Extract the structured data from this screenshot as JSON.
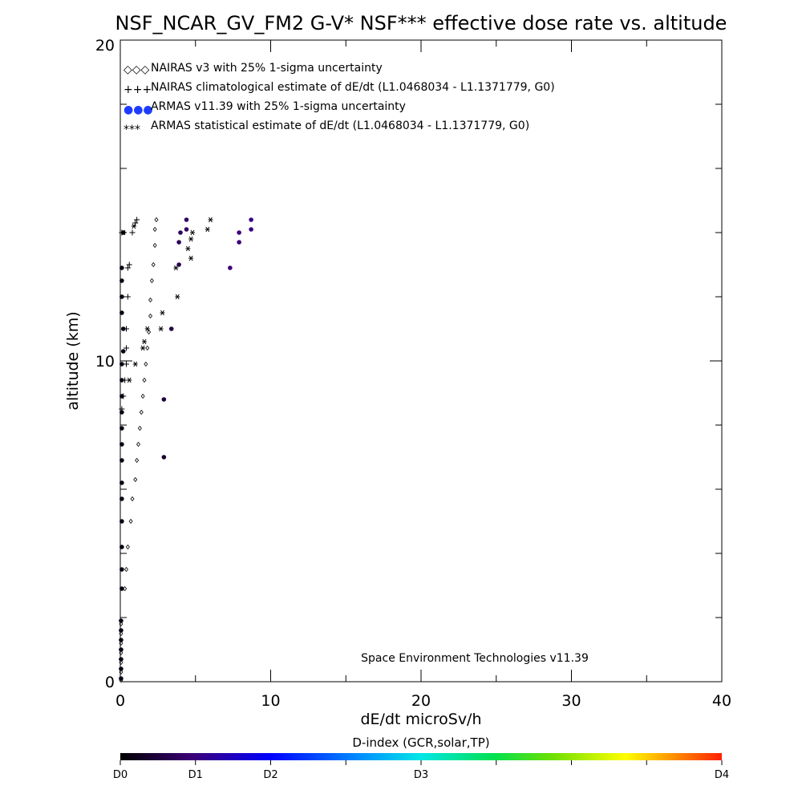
{
  "chart_data": {
    "type": "scatter",
    "title": "NSF_NCAR_GV_FM2 G-V* NSF*** effective dose rate vs. altitude",
    "xlabel": "dE/dt microSv/h",
    "ylabel": "altitude (km)",
    "xlim": [
      0,
      40
    ],
    "ylim": [
      0,
      20
    ],
    "x_ticks": [
      "0",
      "10",
      "20",
      "30",
      "40"
    ],
    "y_ticks": [
      "0",
      "10",
      "20"
    ],
    "legend_position": "top-left",
    "credit": "Space Environment Technologies v11.39",
    "legend": [
      {
        "symbol": "◇◇◇",
        "label": "NAIRAS v3 with 25% 1-sigma uncertainty"
      },
      {
        "symbol": "+++",
        "label": "NAIRAS climatological estimate of dE/dt (L1.0468034 - L1.1371779, G0)"
      },
      {
        "symbol": "●●●",
        "label": "ARMAS v11.39 with 25% 1-sigma uncertainty"
      },
      {
        "symbol": "***",
        "label": "ARMAS statistical estimate of dE/dt (L1.0468034 - L1.1371779, G0)"
      }
    ],
    "colorbar": {
      "title": "D-index (GCR,solar,TP)",
      "labels": [
        "D0",
        "D1",
        "D2",
        "D3",
        "D4"
      ],
      "label_positions": [
        0,
        0.125,
        0.25,
        0.5,
        1.0
      ]
    },
    "series": [
      {
        "name": "NAIRAS v3 with 25% 1-sigma uncertainty",
        "marker": "diamond",
        "color": "#000000",
        "points": [
          [
            0.05,
            0.05
          ],
          [
            0.05,
            0.3
          ],
          [
            0.05,
            0.6
          ],
          [
            0.05,
            0.9
          ],
          [
            0.05,
            1.2
          ],
          [
            0.05,
            1.5
          ],
          [
            0.05,
            1.8
          ],
          [
            0.3,
            2.9
          ],
          [
            0.4,
            3.5
          ],
          [
            0.5,
            4.2
          ],
          [
            0.7,
            5.0
          ],
          [
            0.8,
            5.7
          ],
          [
            1.0,
            6.3
          ],
          [
            1.1,
            6.9
          ],
          [
            1.2,
            7.4
          ],
          [
            1.3,
            7.9
          ],
          [
            1.4,
            8.4
          ],
          [
            1.5,
            8.9
          ],
          [
            1.6,
            9.4
          ],
          [
            1.7,
            9.9
          ],
          [
            1.8,
            10.4
          ],
          [
            1.9,
            10.9
          ],
          [
            2.0,
            11.4
          ],
          [
            2.0,
            11.9
          ],
          [
            2.1,
            12.5
          ],
          [
            2.2,
            13.0
          ],
          [
            2.3,
            13.6
          ],
          [
            2.3,
            14.1
          ],
          [
            2.4,
            14.4
          ]
        ]
      },
      {
        "name": "NAIRAS climatological estimate of dE/dt (L1.0468034 - L1.1371779, G0)",
        "marker": "plus",
        "color": "#000000",
        "points": [
          [
            0.1,
            8.5
          ],
          [
            0.2,
            8.9
          ],
          [
            0.3,
            9.4
          ],
          [
            0.4,
            9.9
          ],
          [
            0.4,
            10.4
          ],
          [
            0.4,
            11.0
          ],
          [
            0.5,
            12.0
          ],
          [
            0.5,
            12.9
          ],
          [
            0.6,
            13.0
          ],
          [
            0.8,
            14.0
          ],
          [
            1.0,
            14.3
          ],
          [
            1.1,
            14.4
          ],
          [
            0.1,
            14.0
          ]
        ]
      },
      {
        "name": "ARMAS v11.39 with 25% 1-sigma uncertainty",
        "marker": "dot",
        "points": [
          [
            0.05,
            0.1
          ],
          [
            0.05,
            0.4
          ],
          [
            0.05,
            0.7
          ],
          [
            0.05,
            1.0
          ],
          [
            0.05,
            1.3
          ],
          [
            0.05,
            1.6
          ],
          [
            0.05,
            1.9
          ],
          [
            0.1,
            2.9
          ],
          [
            0.1,
            3.5
          ],
          [
            0.1,
            4.2
          ],
          [
            0.1,
            5.0
          ],
          [
            0.1,
            5.7
          ],
          [
            0.1,
            6.2
          ],
          [
            0.1,
            6.9
          ],
          [
            0.1,
            7.4
          ],
          [
            0.1,
            7.9
          ],
          [
            0.1,
            8.4
          ],
          [
            0.1,
            8.9
          ],
          [
            0.1,
            9.4
          ],
          [
            0.1,
            9.9
          ],
          [
            0.2,
            10.3
          ],
          [
            0.2,
            11.0
          ],
          [
            0.1,
            11.5
          ],
          [
            0.1,
            12.0
          ],
          [
            0.1,
            12.5
          ],
          [
            0.1,
            12.9
          ],
          [
            0.2,
            14.0
          ],
          [
            2.9,
            7.0
          ],
          [
            2.9,
            8.8
          ],
          [
            3.4,
            11.0
          ],
          [
            3.9,
            13.0
          ],
          [
            3.9,
            13.7
          ],
          [
            4.0,
            14.0
          ],
          [
            4.4,
            14.1
          ],
          [
            4.4,
            14.4
          ],
          [
            7.3,
            12.9
          ],
          [
            7.9,
            13.7
          ],
          [
            7.9,
            14.0
          ],
          [
            8.7,
            14.1
          ],
          [
            8.7,
            14.4
          ]
        ],
        "d_index": [
          0.02,
          0.02,
          0.02,
          0.02,
          0.02,
          0.02,
          0.02,
          0.02,
          0.02,
          0.02,
          0.02,
          0.02,
          0.02,
          0.02,
          0.02,
          0.02,
          0.02,
          0.02,
          0.02,
          0.02,
          0.02,
          0.02,
          0.02,
          0.02,
          0.02,
          0.02,
          0.02,
          0.05,
          0.06,
          0.07,
          0.08,
          0.09,
          0.09,
          0.1,
          0.1,
          0.12,
          0.12,
          0.12,
          0.13,
          0.13
        ]
      },
      {
        "name": "ARMAS statistical estimate of dE/dt (L1.0468034 - L1.1371779, G0)",
        "marker": "asterisk",
        "color": "#000000",
        "points": [
          [
            0.6,
            9.4
          ],
          [
            1.0,
            9.9
          ],
          [
            1.5,
            10.4
          ],
          [
            1.6,
            10.6
          ],
          [
            1.8,
            11.0
          ],
          [
            2.7,
            11.0
          ],
          [
            2.8,
            11.5
          ],
          [
            3.8,
            12.0
          ],
          [
            3.7,
            12.9
          ],
          [
            4.7,
            13.2
          ],
          [
            4.5,
            13.5
          ],
          [
            4.7,
            13.8
          ],
          [
            4.8,
            14.0
          ],
          [
            5.8,
            14.1
          ],
          [
            6.0,
            14.4
          ],
          [
            0.2,
            14.0
          ],
          [
            0.9,
            14.2
          ]
        ]
      }
    ]
  }
}
